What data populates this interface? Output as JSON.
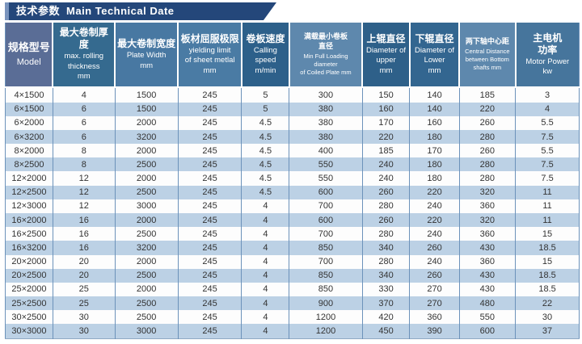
{
  "title": {
    "zh": "技术参数",
    "en": "Main Technical Date"
  },
  "colors": {
    "title_bar": "#24477a",
    "title_bar_accent": "#7a94bd",
    "row_stripe": "#bcd1e5",
    "grid_line": "#6c92ba"
  },
  "table": {
    "columns": [
      {
        "zh": "规格型号",
        "en": "Model",
        "color": "#5a6d96",
        "style": "big"
      },
      {
        "zh": "最大卷制厚度",
        "en": "max. rolling\nthickness\nmm",
        "color": "#356a8f",
        "style": ""
      },
      {
        "zh": "最大卷制宽度",
        "en": "Plate Width\nmm",
        "color": "#4878a2",
        "style": ""
      },
      {
        "zh": "板材屈服极限",
        "en": "yielding limit\nof sheet metlal\nmm",
        "color": "#4a7ba4",
        "style": ""
      },
      {
        "zh": "卷板速度",
        "en": "Calling\nspeed\nm/min",
        "color": "#2d608a",
        "style": ""
      },
      {
        "zh": "满载最小卷板\n直径",
        "en": "Min Full Loading diameter\nof Coiled Plate mm",
        "color": "#5e88ad",
        "style": "small"
      },
      {
        "zh": "上辊直径",
        "en": "Diameter of\nupper\nmm",
        "color": "#2e6089",
        "style": ""
      },
      {
        "zh": "下辊直径",
        "en": "Diameter of\nLower\nmm",
        "color": "#336690",
        "style": ""
      },
      {
        "zh": "两下轴中心距",
        "en": "Central Distance\nbetween Bottom\nshafts mm",
        "color": "#5e88ad",
        "style": "small"
      },
      {
        "zh": "主电机\n功率",
        "en": "Motor Power\nkw",
        "color": "#46759c",
        "style": ""
      }
    ],
    "col_widths_pct": [
      8.3,
      10.8,
      11.0,
      11.1,
      8.3,
      12.7,
      8.3,
      8.6,
      9.8,
      11.1
    ],
    "rows": [
      [
        "4×1500",
        "4",
        "1500",
        "245",
        "5",
        "300",
        "150",
        "140",
        "185",
        "3"
      ],
      [
        "6×1500",
        "6",
        "1500",
        "245",
        "5",
        "380",
        "160",
        "140",
        "220",
        "4"
      ],
      [
        "6×2000",
        "6",
        "2000",
        "245",
        "4.5",
        "380",
        "170",
        "160",
        "260",
        "5.5"
      ],
      [
        "6×3200",
        "6",
        "3200",
        "245",
        "4.5",
        "380",
        "220",
        "180",
        "280",
        "7.5"
      ],
      [
        "8×2000",
        "8",
        "2000",
        "245",
        "4.5",
        "400",
        "185",
        "170",
        "260",
        "5.5"
      ],
      [
        "8×2500",
        "8",
        "2500",
        "245",
        "4.5",
        "550",
        "240",
        "180",
        "280",
        "7.5"
      ],
      [
        "12×2000",
        "12",
        "2000",
        "245",
        "4.5",
        "550",
        "240",
        "180",
        "280",
        "7.5"
      ],
      [
        "12×2500",
        "12",
        "2500",
        "245",
        "4.5",
        "600",
        "260",
        "220",
        "320",
        "11"
      ],
      [
        "12×3000",
        "12",
        "3000",
        "245",
        "4",
        "700",
        "280",
        "240",
        "360",
        "11"
      ],
      [
        "16×2000",
        "16",
        "2000",
        "245",
        "4",
        "600",
        "260",
        "220",
        "320",
        "11"
      ],
      [
        "16×2500",
        "16",
        "2500",
        "245",
        "4",
        "700",
        "280",
        "240",
        "360",
        "15"
      ],
      [
        "16×3200",
        "16",
        "3200",
        "245",
        "4",
        "850",
        "340",
        "260",
        "430",
        "18.5"
      ],
      [
        "20×2000",
        "20",
        "2000",
        "245",
        "4",
        "700",
        "280",
        "240",
        "360",
        "15"
      ],
      [
        "20×2500",
        "20",
        "2500",
        "245",
        "4",
        "850",
        "340",
        "260",
        "430",
        "18.5"
      ],
      [
        "25×2000",
        "25",
        "2000",
        "245",
        "4",
        "850",
        "330",
        "270",
        "430",
        "18.5"
      ],
      [
        "25×2500",
        "25",
        "2500",
        "245",
        "4",
        "900",
        "370",
        "270",
        "480",
        "22"
      ],
      [
        "30×2500",
        "30",
        "2500",
        "245",
        "4",
        "1200",
        "420",
        "360",
        "550",
        "30"
      ],
      [
        "30×3000",
        "30",
        "3000",
        "245",
        "4",
        "1200",
        "450",
        "390",
        "600",
        "37"
      ]
    ]
  },
  "chart_data": {
    "type": "table",
    "title": "技术参数 Main Technical Date",
    "columns": [
      "规格型号 Model",
      "最大卷制厚度 max. rolling thickness mm",
      "最大卷制宽度 Plate Width mm",
      "板材屈服极限 yielding limit of sheet metlal mm",
      "卷板速度 Calling speed m/min",
      "满载最小卷板直径 Min Full Loading diameter of Coiled Plate mm",
      "上辊直径 Diameter of upper mm",
      "下辊直径 Diameter of Lower mm",
      "两下轴中心距 Central Distance between Bottom shafts mm",
      "主电机功率 Motor Power kw"
    ],
    "rows": [
      [
        "4×1500",
        4,
        1500,
        245,
        5,
        300,
        150,
        140,
        185,
        3
      ],
      [
        "6×1500",
        6,
        1500,
        245,
        5,
        380,
        160,
        140,
        220,
        4
      ],
      [
        "6×2000",
        6,
        2000,
        245,
        4.5,
        380,
        170,
        160,
        260,
        5.5
      ],
      [
        "6×3200",
        6,
        3200,
        245,
        4.5,
        380,
        220,
        180,
        280,
        7.5
      ],
      [
        "8×2000",
        8,
        2000,
        245,
        4.5,
        400,
        185,
        170,
        260,
        5.5
      ],
      [
        "8×2500",
        8,
        2500,
        245,
        4.5,
        550,
        240,
        180,
        280,
        7.5
      ],
      [
        "12×2000",
        12,
        2000,
        245,
        4.5,
        550,
        240,
        180,
        280,
        7.5
      ],
      [
        "12×2500",
        12,
        2500,
        245,
        4.5,
        600,
        260,
        220,
        320,
        11
      ],
      [
        "12×3000",
        12,
        3000,
        245,
        4,
        700,
        280,
        240,
        360,
        11
      ],
      [
        "16×2000",
        16,
        2000,
        245,
        4,
        600,
        260,
        220,
        320,
        11
      ],
      [
        "16×2500",
        16,
        2500,
        245,
        4,
        700,
        280,
        240,
        360,
        15
      ],
      [
        "16×3200",
        16,
        3200,
        245,
        4,
        850,
        340,
        260,
        430,
        18.5
      ],
      [
        "20×2000",
        20,
        2000,
        245,
        4,
        700,
        280,
        240,
        360,
        15
      ],
      [
        "20×2500",
        20,
        2500,
        245,
        4,
        850,
        340,
        260,
        430,
        18.5
      ],
      [
        "25×2000",
        25,
        2000,
        245,
        4,
        850,
        330,
        270,
        430,
        18.5
      ],
      [
        "25×2500",
        25,
        2500,
        245,
        4,
        900,
        370,
        270,
        480,
        22
      ],
      [
        "30×2500",
        30,
        2500,
        245,
        4,
        1200,
        420,
        360,
        550,
        30
      ],
      [
        "30×3000",
        30,
        3000,
        245,
        4,
        1200,
        450,
        390,
        600,
        37
      ]
    ]
  }
}
